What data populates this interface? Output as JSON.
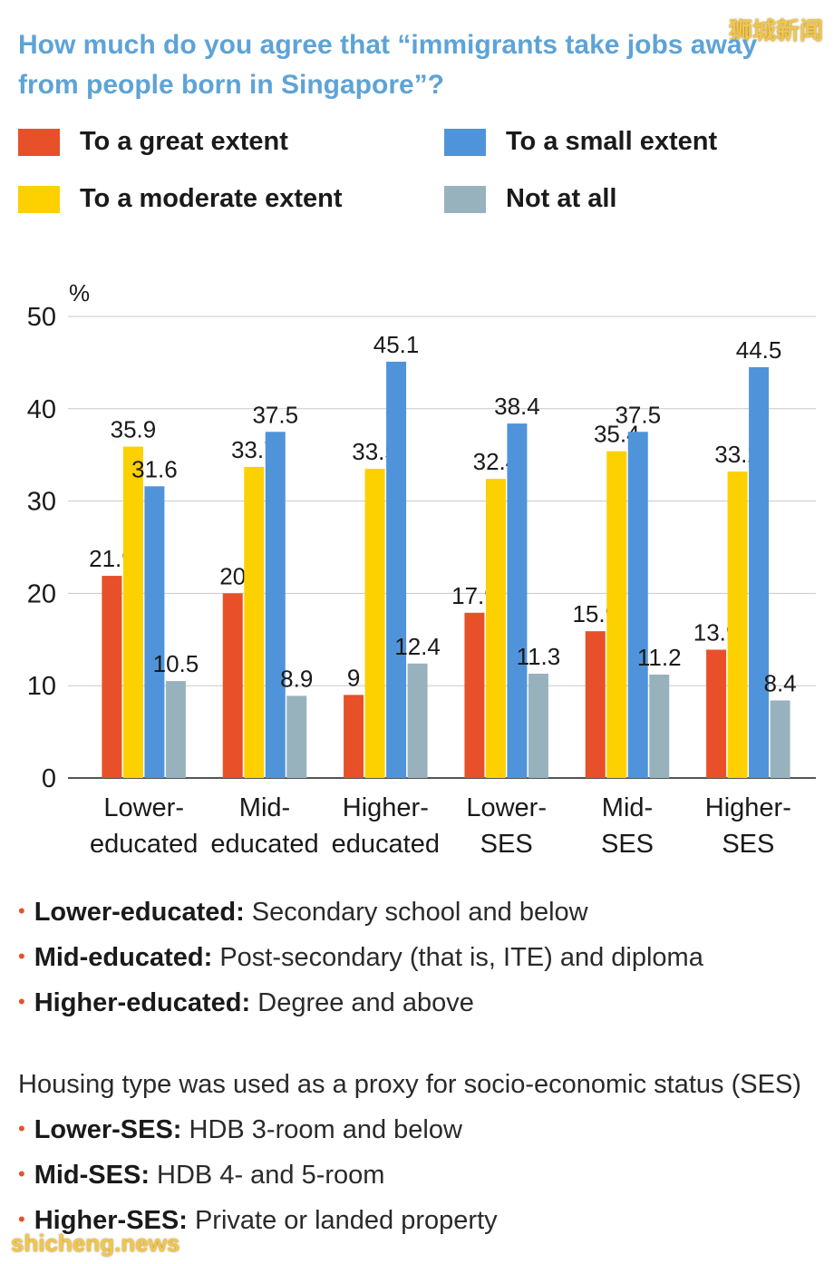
{
  "title": "How much do you agree that “immigrants take jobs away from people born in Singapore”?",
  "watermarks": {
    "top": "狮城新闻",
    "bottom": "shicheng.news"
  },
  "colors": {
    "great": "#e8502a",
    "moderate": "#fdd000",
    "small": "#4f94da",
    "not_at_all": "#98b2bd",
    "gridline": "#c8c8c8",
    "axis": "#555555",
    "title": "#5ea3d6",
    "bullet": "#e8502a"
  },
  "chart_data": {
    "type": "bar",
    "title": "How much do you agree that “immigrants take jobs away from people born in Singapore”?",
    "ylabel": "%",
    "xlabel": "",
    "ylim": [
      0,
      50
    ],
    "yticks": [
      0,
      10,
      20,
      30,
      40,
      50
    ],
    "grid": true,
    "legend_position": "top",
    "categories": [
      [
        "Lower-",
        "educated"
      ],
      [
        "Mid-",
        "educated"
      ],
      [
        "Higher-",
        "educated"
      ],
      [
        "Lower-",
        "SES"
      ],
      [
        "Mid-",
        "SES"
      ],
      [
        "Higher-",
        "SES"
      ]
    ],
    "series": [
      {
        "name": "To a great extent",
        "color": "#e8502a",
        "values": [
          21.9,
          20,
          9,
          17.9,
          15.9,
          13.9
        ]
      },
      {
        "name": "To a moderate extent",
        "color": "#fdd000",
        "values": [
          35.9,
          33.7,
          33.5,
          32.4,
          35.4,
          33.2
        ]
      },
      {
        "name": "To a small extent",
        "color": "#4f94da",
        "values": [
          31.6,
          37.5,
          45.1,
          38.4,
          37.5,
          44.5
        ]
      },
      {
        "name": "Not at all",
        "color": "#98b2bd",
        "values": [
          10.5,
          8.9,
          12.4,
          11.3,
          11.2,
          8.4
        ]
      }
    ]
  },
  "legend": [
    "To a great extent",
    "To a small extent",
    "To a moderate extent",
    "Not at all"
  ],
  "notes": {
    "education": [
      {
        "term": "Lower-educated:",
        "desc": " Secondary school and below"
      },
      {
        "term": "Mid-educated:",
        "desc": " Post-secondary (that is, ITE) and diploma"
      },
      {
        "term": "Higher-educated:",
        "desc": " Degree and above"
      }
    ],
    "housing_intro": "Housing type was used as a proxy for socio-economic status (SES)",
    "ses": [
      {
        "term": "Lower-SES:",
        "desc": " HDB 3-room and below"
      },
      {
        "term": "Mid-SES:",
        "desc": " HDB 4- and 5-room"
      },
      {
        "term": "Higher-SES:",
        "desc": " Private or landed property"
      }
    ],
    "bullet": "•"
  }
}
